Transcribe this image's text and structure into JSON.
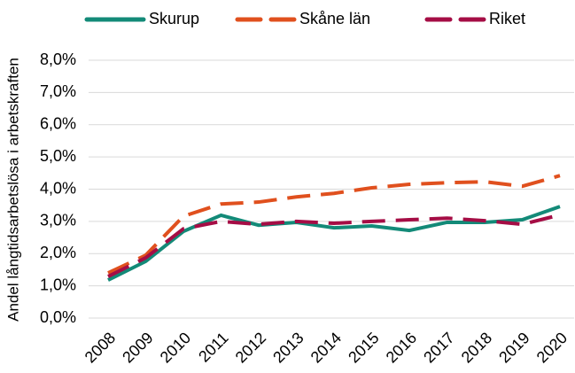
{
  "chart_data": {
    "type": "line",
    "y_label": "Andel långtidsarbetslösa i arbetskraften",
    "categories": [
      "2008",
      "2009",
      "2010",
      "2011",
      "2012",
      "2013",
      "2014",
      "2015",
      "2016",
      "2017",
      "2018",
      "2019",
      "2020"
    ],
    "series": [
      {
        "name": "Skurup",
        "color": "#138a78",
        "line_style": "solid",
        "values": [
          1.18,
          1.76,
          2.69,
          3.19,
          2.88,
          2.97,
          2.8,
          2.86,
          2.72,
          2.97,
          2.97,
          3.05,
          3.46
        ]
      },
      {
        "name": "Skåne län",
        "color": "#e0501e",
        "line_style": "dashed",
        "values": [
          1.4,
          1.95,
          3.16,
          3.54,
          3.6,
          3.76,
          3.87,
          4.04,
          4.15,
          4.2,
          4.23,
          4.09,
          4.42
        ]
      },
      {
        "name": "Riket",
        "color": "#a50d45",
        "line_style": "dashed",
        "values": [
          1.29,
          1.87,
          2.77,
          3.0,
          2.91,
          3.0,
          2.94,
          3.0,
          3.05,
          3.1,
          3.02,
          2.91,
          3.2
        ]
      }
    ],
    "ylim": [
      0,
      8
    ],
    "yticks": [
      {
        "value": 0,
        "label": "0,0%"
      },
      {
        "value": 1,
        "label": "1,0%"
      },
      {
        "value": 2,
        "label": "2,0%"
      },
      {
        "value": 3,
        "label": "3,0%"
      },
      {
        "value": 4,
        "label": "4,0%"
      },
      {
        "value": 5,
        "label": "5,0%"
      },
      {
        "value": 6,
        "label": "6,0%"
      },
      {
        "value": 7,
        "label": "7,0%"
      },
      {
        "value": 8,
        "label": "8,0%"
      }
    ],
    "grid": true,
    "legend": "top"
  }
}
